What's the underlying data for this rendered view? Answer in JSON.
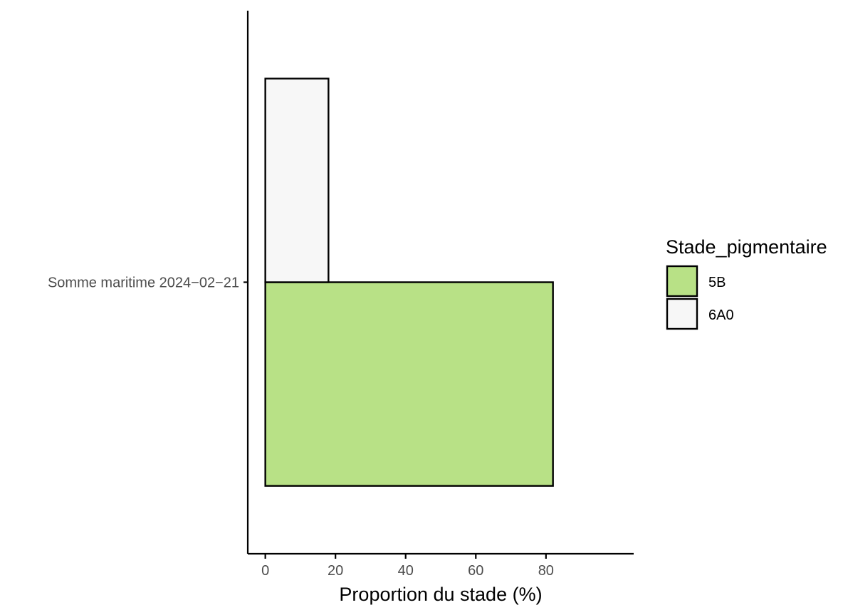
{
  "chart_data": {
    "type": "bar",
    "orientation": "horizontal",
    "position": "dodge",
    "categories": [
      "Somme maritime 2024−02−21"
    ],
    "series": [
      {
        "name": "5B",
        "values": [
          82
        ],
        "color": "#b8e186"
      },
      {
        "name": "6A0",
        "values": [
          18
        ],
        "color": "#f7f7f7"
      }
    ],
    "xlabel": "Proportion du stade (%)",
    "ylabel": "",
    "xlim": [
      -5,
      105
    ],
    "xticks": [
      0,
      20,
      40,
      60,
      80
    ],
    "legend": {
      "title": "Stade_pigmentaire",
      "placement": "right"
    },
    "grid": false
  }
}
